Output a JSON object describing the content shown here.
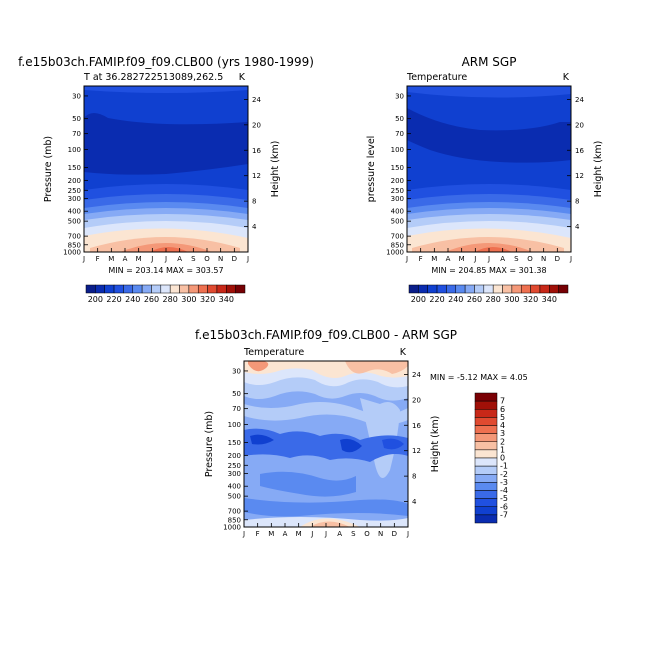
{
  "chart_data": [
    {
      "type": "heatmap",
      "title": "f.e15b03ch.FAMIP.f09_f09.CLB00 (yrs 1980-1999)",
      "subtitle_left": "T at 36.282722513089,262.5",
      "subtitle_right": "K",
      "ylabel_left": "Pressure (mb)",
      "ylabel_right": "Height (km)",
      "x": [
        "J",
        "F",
        "M",
        "A",
        "M",
        "J",
        "J",
        "A",
        "S",
        "O",
        "N",
        "D",
        "J"
      ],
      "pressure_ticks": [
        30,
        50,
        70,
        100,
        150,
        200,
        250,
        300,
        400,
        500,
        700,
        850,
        1000
      ],
      "height_ticks": [
        4,
        8,
        12,
        16,
        20,
        24
      ],
      "stats": "MIN = 203.14  MAX = 303.57"
    },
    {
      "type": "heatmap",
      "title": "ARM SGP",
      "subtitle_left": "Temperature",
      "subtitle_right": "K",
      "ylabel_left": "pressure level",
      "ylabel_right": "Height (km)",
      "x": [
        "J",
        "F",
        "M",
        "A",
        "M",
        "J",
        "J",
        "A",
        "S",
        "O",
        "N",
        "D",
        "J"
      ],
      "pressure_ticks": [
        30,
        50,
        70,
        100,
        150,
        200,
        250,
        300,
        400,
        500,
        700,
        850,
        1000
      ],
      "height_ticks": [
        4,
        8,
        12,
        16,
        20,
        24
      ],
      "stats": "MIN = 204.85  MAX = 301.38"
    },
    {
      "type": "heatmap",
      "title": "f.e15b03ch.FAMIP.f09_f09.CLB00 - ARM SGP",
      "subtitle_left": "Temperature",
      "subtitle_right": "K",
      "ylabel_left": "Pressure (mb)",
      "ylabel_right": "Height (km)",
      "x": [
        "J",
        "F",
        "M",
        "A",
        "M",
        "J",
        "J",
        "A",
        "S",
        "O",
        "N",
        "D",
        "J"
      ],
      "pressure_ticks": [
        30,
        50,
        70,
        100,
        150,
        200,
        250,
        300,
        400,
        500,
        700,
        850,
        1000
      ],
      "height_ticks": [
        4,
        8,
        12,
        16,
        20,
        24
      ],
      "stats": "MIN =   -5.12  MAX =    4.05"
    }
  ],
  "colorbar_temperature": {
    "labels": [
      "200",
      "220",
      "240",
      "260",
      "280",
      "300",
      "320",
      "340"
    ],
    "colors": [
      "#0a1e8a",
      "#0a2cb0",
      "#1040d0",
      "#2050e0",
      "#3a6ae8",
      "#5a8af0",
      "#86aaf5",
      "#b4ccf8",
      "#dce6fb",
      "#fbe5d2",
      "#f8c0a4",
      "#f49878",
      "#ee7050",
      "#e04a30",
      "#c82818",
      "#a01008",
      "#760004"
    ]
  },
  "colorbar_difference": {
    "labels": [
      "7",
      "6",
      "5",
      "4",
      "3",
      "2",
      "1",
      "0",
      "-1",
      "-2",
      "-3",
      "-4",
      "-5",
      "-6",
      "-7"
    ],
    "colors": [
      "#7a0004",
      "#a01008",
      "#c82818",
      "#e04a30",
      "#ee7050",
      "#f49878",
      "#f8c0a4",
      "#fbe5d2",
      "#dce6fb",
      "#b4ccf8",
      "#86aaf5",
      "#5a8af0",
      "#3a6ae8",
      "#2050e0",
      "#1040d0",
      "#0a2cb0"
    ]
  }
}
